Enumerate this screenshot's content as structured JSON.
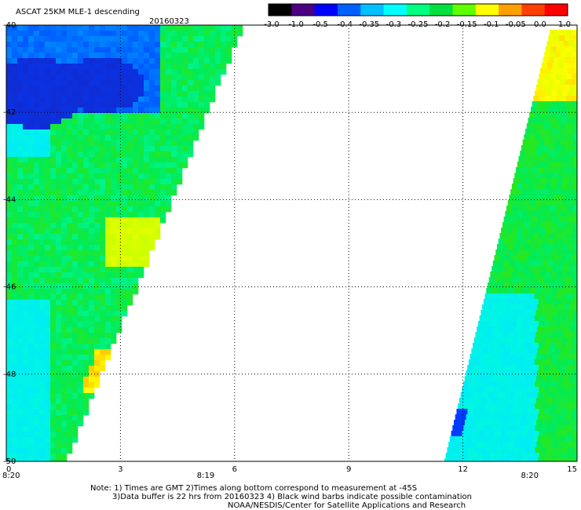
{
  "header": {
    "title": "ASCAT 25KM MLE-1 descending",
    "date": "20160323"
  },
  "colorbar": {
    "tick_labels": [
      "-3.0",
      "-1.0",
      "-0.5",
      "-0.4",
      "-0.35",
      "-0.3",
      "-0.25",
      "-0.2",
      "-0.15",
      "-0.1",
      "-0.05",
      "0.0",
      "1.0"
    ],
    "colors": [
      "#000000",
      "#4b0082",
      "#0000ff",
      "#0060ff",
      "#00c0ff",
      "#00ffff",
      "#00ff80",
      "#00e040",
      "#60ff00",
      "#ffff00",
      "#ffa000",
      "#ff4000",
      "#ff0000"
    ]
  },
  "map": {
    "lat_labels": [
      "-40",
      "-42",
      "-44",
      "-46",
      "-48",
      "-50"
    ],
    "lon_labels": [
      "0",
      "3",
      "6",
      "9",
      "12",
      "15"
    ],
    "time_labels": [
      "8:20",
      "8:19",
      "8:20"
    ],
    "time_label_color": "#c8321e",
    "grid_style": "dotted"
  },
  "notes": {
    "line1": "Note: 1) Times are GMT 2)Times along bottom correspond to measurement at -45S",
    "line2": "3)Data buffer is 22 hrs from 20160323 4) Black wind barbs indicate possible contamination",
    "line3": "NOAA/NESDIS/Center for Satellite Applications and Research"
  }
}
